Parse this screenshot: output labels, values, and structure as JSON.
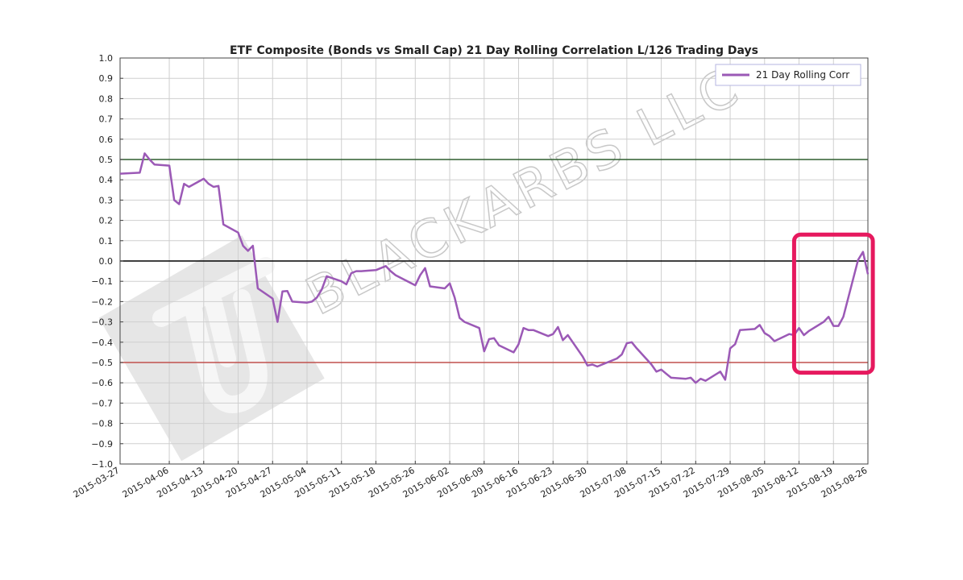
{
  "chart_data": {
    "type": "line",
    "title": "ETF Composite (Bonds vs Small Cap) 21 Day Rolling Correlation L/126 Trading Days",
    "xlabel": "",
    "ylabel": "",
    "ylim": [
      -1.0,
      1.0
    ],
    "xlim": [
      "2015-03-27",
      "2015-08-26"
    ],
    "grid": true,
    "legend_position": "top-right",
    "y_ticks": [
      "1.0",
      "0.9",
      "0.8",
      "0.7",
      "0.6",
      "0.5",
      "0.4",
      "0.3",
      "0.2",
      "0.1",
      "0.0",
      "−0.1",
      "−0.2",
      "−0.3",
      "−0.4",
      "−0.5",
      "−0.6",
      "−0.7",
      "−0.8",
      "−0.9",
      "−1.0"
    ],
    "y_tick_values": [
      1.0,
      0.9,
      0.8,
      0.7,
      0.6,
      0.5,
      0.4,
      0.3,
      0.2,
      0.1,
      0.0,
      -0.1,
      -0.2,
      -0.3,
      -0.4,
      -0.5,
      -0.6,
      -0.7,
      -0.8,
      -0.9,
      -1.0
    ],
    "x_ticks": [
      "2015-03-27",
      "2015-04-06",
      "2015-04-13",
      "2015-04-20",
      "2015-04-27",
      "2015-05-04",
      "2015-05-11",
      "2015-05-18",
      "2015-05-26",
      "2015-06-02",
      "2015-06-09",
      "2015-06-16",
      "2015-06-23",
      "2015-06-30",
      "2015-07-08",
      "2015-07-15",
      "2015-07-22",
      "2015-07-29",
      "2015-08-05",
      "2015-08-12",
      "2015-08-19",
      "2015-08-26"
    ],
    "reference_lines": [
      {
        "y": 0.5,
        "color": "#2e5e2e"
      },
      {
        "y": 0.0,
        "color": "#000000"
      },
      {
        "y": -0.5,
        "color": "#c0504d"
      }
    ],
    "series": [
      {
        "name": "21 Day Rolling Corr",
        "color": "#9b59b6",
        "points": [
          {
            "x": "2015-03-27",
            "y": 0.43
          },
          {
            "x": "2015-03-31",
            "y": 0.435
          },
          {
            "x": "2015-04-01",
            "y": 0.53
          },
          {
            "x": "2015-04-02",
            "y": 0.5
          },
          {
            "x": "2015-04-03",
            "y": 0.475
          },
          {
            "x": "2015-04-06",
            "y": 0.47
          },
          {
            "x": "2015-04-07",
            "y": 0.3
          },
          {
            "x": "2015-04-08",
            "y": 0.28
          },
          {
            "x": "2015-04-09",
            "y": 0.38
          },
          {
            "x": "2015-04-10",
            "y": 0.365
          },
          {
            "x": "2015-04-13",
            "y": 0.405
          },
          {
            "x": "2015-04-14",
            "y": 0.38
          },
          {
            "x": "2015-04-15",
            "y": 0.365
          },
          {
            "x": "2015-04-16",
            "y": 0.37
          },
          {
            "x": "2015-04-17",
            "y": 0.18
          },
          {
            "x": "2015-04-20",
            "y": 0.14
          },
          {
            "x": "2015-04-21",
            "y": 0.075
          },
          {
            "x": "2015-04-22",
            "y": 0.05
          },
          {
            "x": "2015-04-23",
            "y": 0.075
          },
          {
            "x": "2015-04-24",
            "y": -0.135
          },
          {
            "x": "2015-04-27",
            "y": -0.185
          },
          {
            "x": "2015-04-28",
            "y": -0.3
          },
          {
            "x": "2015-04-29",
            "y": -0.15
          },
          {
            "x": "2015-04-30",
            "y": -0.148
          },
          {
            "x": "2015-05-01",
            "y": -0.2
          },
          {
            "x": "2015-05-04",
            "y": -0.205
          },
          {
            "x": "2015-05-05",
            "y": -0.2
          },
          {
            "x": "2015-05-06",
            "y": -0.18
          },
          {
            "x": "2015-05-07",
            "y": -0.14
          },
          {
            "x": "2015-05-08",
            "y": -0.075
          },
          {
            "x": "2015-05-11",
            "y": -0.1
          },
          {
            "x": "2015-05-12",
            "y": -0.115
          },
          {
            "x": "2015-05-13",
            "y": -0.06
          },
          {
            "x": "2015-05-14",
            "y": -0.05
          },
          {
            "x": "2015-05-15",
            "y": -0.05
          },
          {
            "x": "2015-05-18",
            "y": -0.045
          },
          {
            "x": "2015-05-19",
            "y": -0.035
          },
          {
            "x": "2015-05-20",
            "y": -0.025
          },
          {
            "x": "2015-05-21",
            "y": -0.05
          },
          {
            "x": "2015-05-22",
            "y": -0.07
          },
          {
            "x": "2015-05-26",
            "y": -0.12
          },
          {
            "x": "2015-05-27",
            "y": -0.07
          },
          {
            "x": "2015-05-28",
            "y": -0.035
          },
          {
            "x": "2015-05-29",
            "y": -0.125
          },
          {
            "x": "2015-06-01",
            "y": -0.135
          },
          {
            "x": "2015-06-02",
            "y": -0.11
          },
          {
            "x": "2015-06-03",
            "y": -0.18
          },
          {
            "x": "2015-06-04",
            "y": -0.28
          },
          {
            "x": "2015-06-05",
            "y": -0.3
          },
          {
            "x": "2015-06-08",
            "y": -0.33
          },
          {
            "x": "2015-06-09",
            "y": -0.445
          },
          {
            "x": "2015-06-10",
            "y": -0.385
          },
          {
            "x": "2015-06-11",
            "y": -0.38
          },
          {
            "x": "2015-06-12",
            "y": -0.415
          },
          {
            "x": "2015-06-15",
            "y": -0.45
          },
          {
            "x": "2015-06-16",
            "y": -0.41
          },
          {
            "x": "2015-06-17",
            "y": -0.33
          },
          {
            "x": "2015-06-18",
            "y": -0.34
          },
          {
            "x": "2015-06-19",
            "y": -0.34
          },
          {
            "x": "2015-06-22",
            "y": -0.37
          },
          {
            "x": "2015-06-23",
            "y": -0.36
          },
          {
            "x": "2015-06-24",
            "y": -0.325
          },
          {
            "x": "2015-06-25",
            "y": -0.39
          },
          {
            "x": "2015-06-26",
            "y": -0.365
          },
          {
            "x": "2015-06-29",
            "y": -0.47
          },
          {
            "x": "2015-06-30",
            "y": -0.515
          },
          {
            "x": "2015-07-01",
            "y": -0.51
          },
          {
            "x": "2015-07-02",
            "y": -0.52
          },
          {
            "x": "2015-07-06",
            "y": -0.48
          },
          {
            "x": "2015-07-07",
            "y": -0.46
          },
          {
            "x": "2015-07-08",
            "y": -0.405
          },
          {
            "x": "2015-07-09",
            "y": -0.4
          },
          {
            "x": "2015-07-10",
            "y": -0.43
          },
          {
            "x": "2015-07-13",
            "y": -0.51
          },
          {
            "x": "2015-07-14",
            "y": -0.545
          },
          {
            "x": "2015-07-15",
            "y": -0.535
          },
          {
            "x": "2015-07-16",
            "y": -0.555
          },
          {
            "x": "2015-07-17",
            "y": -0.575
          },
          {
            "x": "2015-07-20",
            "y": -0.58
          },
          {
            "x": "2015-07-21",
            "y": -0.575
          },
          {
            "x": "2015-07-22",
            "y": -0.6
          },
          {
            "x": "2015-07-23",
            "y": -0.58
          },
          {
            "x": "2015-07-24",
            "y": -0.59
          },
          {
            "x": "2015-07-27",
            "y": -0.545
          },
          {
            "x": "2015-07-28",
            "y": -0.585
          },
          {
            "x": "2015-07-29",
            "y": -0.43
          },
          {
            "x": "2015-07-30",
            "y": -0.41
          },
          {
            "x": "2015-07-31",
            "y": -0.34
          },
          {
            "x": "2015-08-03",
            "y": -0.335
          },
          {
            "x": "2015-08-04",
            "y": -0.315
          },
          {
            "x": "2015-08-05",
            "y": -0.355
          },
          {
            "x": "2015-08-06",
            "y": -0.37
          },
          {
            "x": "2015-08-07",
            "y": -0.395
          },
          {
            "x": "2015-08-10",
            "y": -0.36
          },
          {
            "x": "2015-08-11",
            "y": -0.365
          },
          {
            "x": "2015-08-12",
            "y": -0.33
          },
          {
            "x": "2015-08-13",
            "y": -0.365
          },
          {
            "x": "2015-08-14",
            "y": -0.345
          },
          {
            "x": "2015-08-17",
            "y": -0.3
          },
          {
            "x": "2015-08-18",
            "y": -0.275
          },
          {
            "x": "2015-08-19",
            "y": -0.32
          },
          {
            "x": "2015-08-20",
            "y": -0.32
          },
          {
            "x": "2015-08-21",
            "y": -0.275
          },
          {
            "x": "2015-08-24",
            "y": 0.005
          },
          {
            "x": "2015-08-25",
            "y": 0.045
          },
          {
            "x": "2015-08-26",
            "y": -0.065
          }
        ]
      }
    ],
    "highlight_box": {
      "x_start": "2015-08-11",
      "x_end": "2015-08-27",
      "y_start": -0.55,
      "y_end": 0.13,
      "color": "#e6195e"
    }
  },
  "watermark": {
    "text": "BLACKARBS LLC"
  }
}
